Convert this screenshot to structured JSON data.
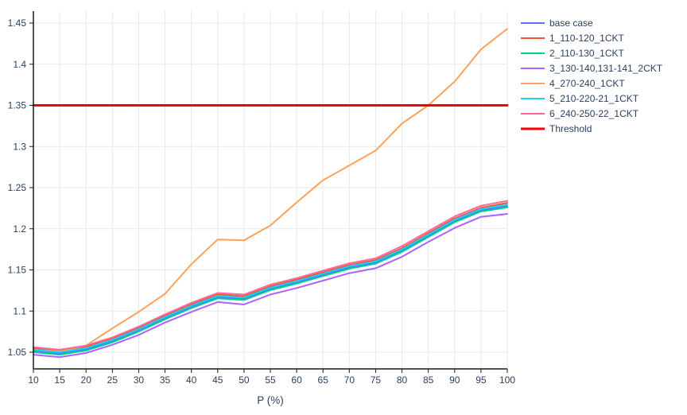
{
  "chart_data": {
    "type": "line",
    "title": "",
    "xlabel": "P (%)",
    "ylabel": "",
    "xlim": [
      10,
      100
    ],
    "ylim": [
      1.03,
      1.465
    ],
    "grid": true,
    "legend_position": "right-top-outside",
    "x": [
      10,
      15,
      20,
      25,
      30,
      35,
      40,
      45,
      50,
      55,
      60,
      65,
      70,
      75,
      80,
      85,
      90,
      95,
      100
    ],
    "xtick_labels": [
      "10",
      "15",
      "20",
      "25",
      "30",
      "35",
      "40",
      "45",
      "50",
      "55",
      "60",
      "65",
      "70",
      "75",
      "80",
      "85",
      "90",
      "95",
      "100"
    ],
    "ytick_values": [
      1.05,
      1.1,
      1.15,
      1.2,
      1.25,
      1.3,
      1.35,
      1.4,
      1.45
    ],
    "ytick_labels": [
      "1.05",
      "1.1",
      "1.15",
      "1.2",
      "1.25",
      "1.3",
      "1.35",
      "1.4",
      "1.45"
    ],
    "series": [
      {
        "name": "base case",
        "color": "#636EFA",
        "width": 2,
        "values": [
          1.0515,
          1.0485,
          1.0535,
          1.0635,
          1.0765,
          1.0915,
          1.105,
          1.117,
          1.115,
          1.127,
          1.135,
          1.144,
          1.153,
          1.159,
          1.1735,
          1.1915,
          1.2095,
          1.2225,
          1.2275
        ]
      },
      {
        "name": "1_110-120_1CKT",
        "color": "#EF553B",
        "width": 2,
        "values": [
          1.0545,
          1.0515,
          1.0565,
          1.0665,
          1.0795,
          1.0945,
          1.108,
          1.12,
          1.118,
          1.13,
          1.138,
          1.147,
          1.156,
          1.162,
          1.1765,
          1.1945,
          1.2125,
          1.2255,
          1.2315
        ]
      },
      {
        "name": "2_110-130_1CKT",
        "color": "#00CC96",
        "width": 2,
        "values": [
          1.05,
          1.047,
          1.052,
          1.062,
          1.075,
          1.09,
          1.1035,
          1.1155,
          1.1135,
          1.1255,
          1.1335,
          1.1425,
          1.1515,
          1.1575,
          1.172,
          1.19,
          1.208,
          1.221,
          1.226
        ]
      },
      {
        "name": "3_130-140,131-141_2CKT",
        "color": "#AB63FA",
        "width": 2,
        "values": [
          1.047,
          1.044,
          1.049,
          1.059,
          1.071,
          1.086,
          1.099,
          1.111,
          1.108,
          1.12,
          1.128,
          1.137,
          1.146,
          1.152,
          1.166,
          1.184,
          1.201,
          1.2145,
          1.218
        ]
      },
      {
        "name": "4_270-240_1CKT",
        "color": "#FFA15A",
        "width": 2,
        "values": [
          1.053,
          1.051,
          1.058,
          1.079,
          1.099,
          1.121,
          1.157,
          1.187,
          1.186,
          1.204,
          1.232,
          1.259,
          1.277,
          1.295,
          1.328,
          1.35,
          1.379,
          1.418,
          1.443
        ]
      },
      {
        "name": "5_210-220-21_1CKT",
        "color": "#19D3F3",
        "width": 2,
        "values": [
          1.053,
          1.05,
          1.055,
          1.065,
          1.078,
          1.093,
          1.1065,
          1.1185,
          1.1165,
          1.1285,
          1.1365,
          1.1455,
          1.1545,
          1.1605,
          1.175,
          1.193,
          1.211,
          1.224,
          1.2295
        ]
      },
      {
        "name": "6_240-250-22_1CKT",
        "color": "#FF6692",
        "width": 2,
        "values": [
          1.056,
          1.053,
          1.058,
          1.068,
          1.081,
          1.096,
          1.11,
          1.122,
          1.12,
          1.132,
          1.14,
          1.149,
          1.158,
          1.164,
          1.179,
          1.197,
          1.215,
          1.228,
          1.234
        ]
      },
      {
        "name": "Threshold",
        "color": "#FF0000",
        "width": 3,
        "values": [
          1.35,
          1.35,
          1.35,
          1.35,
          1.35,
          1.35,
          1.35,
          1.35,
          1.35,
          1.35,
          1.35,
          1.35,
          1.35,
          1.35,
          1.35,
          1.35,
          1.35,
          1.35,
          1.35
        ]
      }
    ]
  },
  "style_colors": {
    "text": "#2a3f5f",
    "grid": "#E8E8E8",
    "axis_line": "#1a1a1a",
    "background": "#ffffff"
  }
}
